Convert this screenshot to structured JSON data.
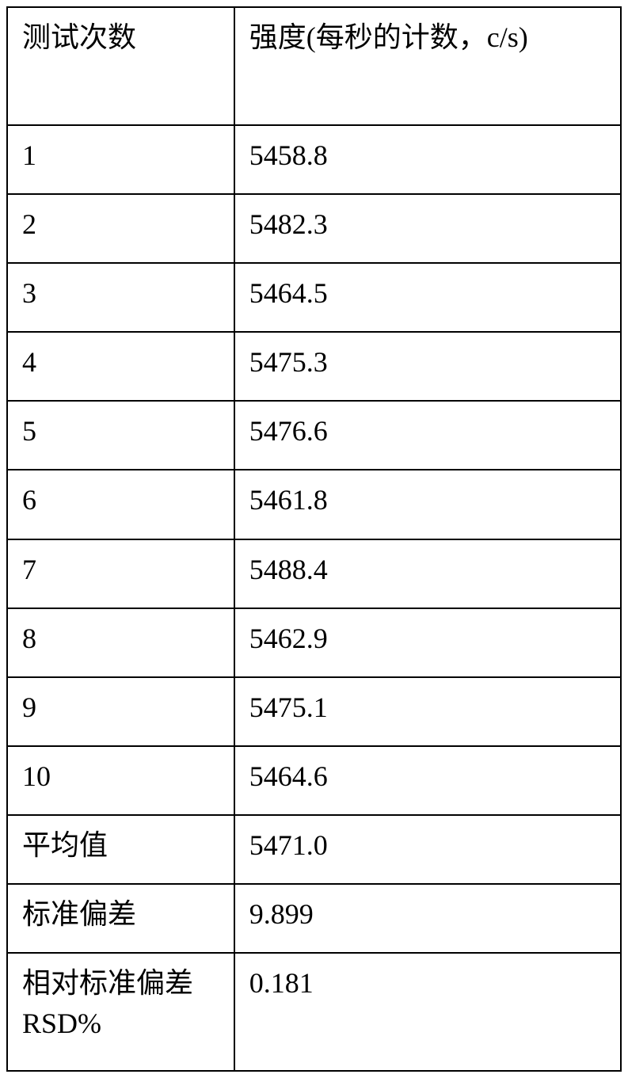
{
  "table": {
    "border_color": "#000000",
    "background_color": "#ffffff",
    "text_color": "#000000",
    "font_size": 36,
    "columns": [
      {
        "header": "测试次数",
        "width_pct": 37
      },
      {
        "header": "强度(每秒的计数，c/s)",
        "width_pct": 63
      }
    ],
    "rows": [
      {
        "label": "1",
        "value": "5458.8"
      },
      {
        "label": "2",
        "value": "5482.3"
      },
      {
        "label": "3",
        "value": "5464.5"
      },
      {
        "label": "4",
        "value": "5475.3"
      },
      {
        "label": "5",
        "value": "5476.6"
      },
      {
        "label": "6",
        "value": "5461.8"
      },
      {
        "label": "7",
        "value": "5488.4"
      },
      {
        "label": "8",
        "value": "5462.9"
      },
      {
        "label": "9",
        "value": "5475.1"
      },
      {
        "label": "10",
        "value": "5464.6"
      }
    ],
    "summary": [
      {
        "label": "平均值",
        "value": "5471.0"
      },
      {
        "label": "标准偏差",
        "value": "9.899"
      },
      {
        "label": "相对标准偏差 RSD%",
        "value": "0.181"
      }
    ]
  }
}
